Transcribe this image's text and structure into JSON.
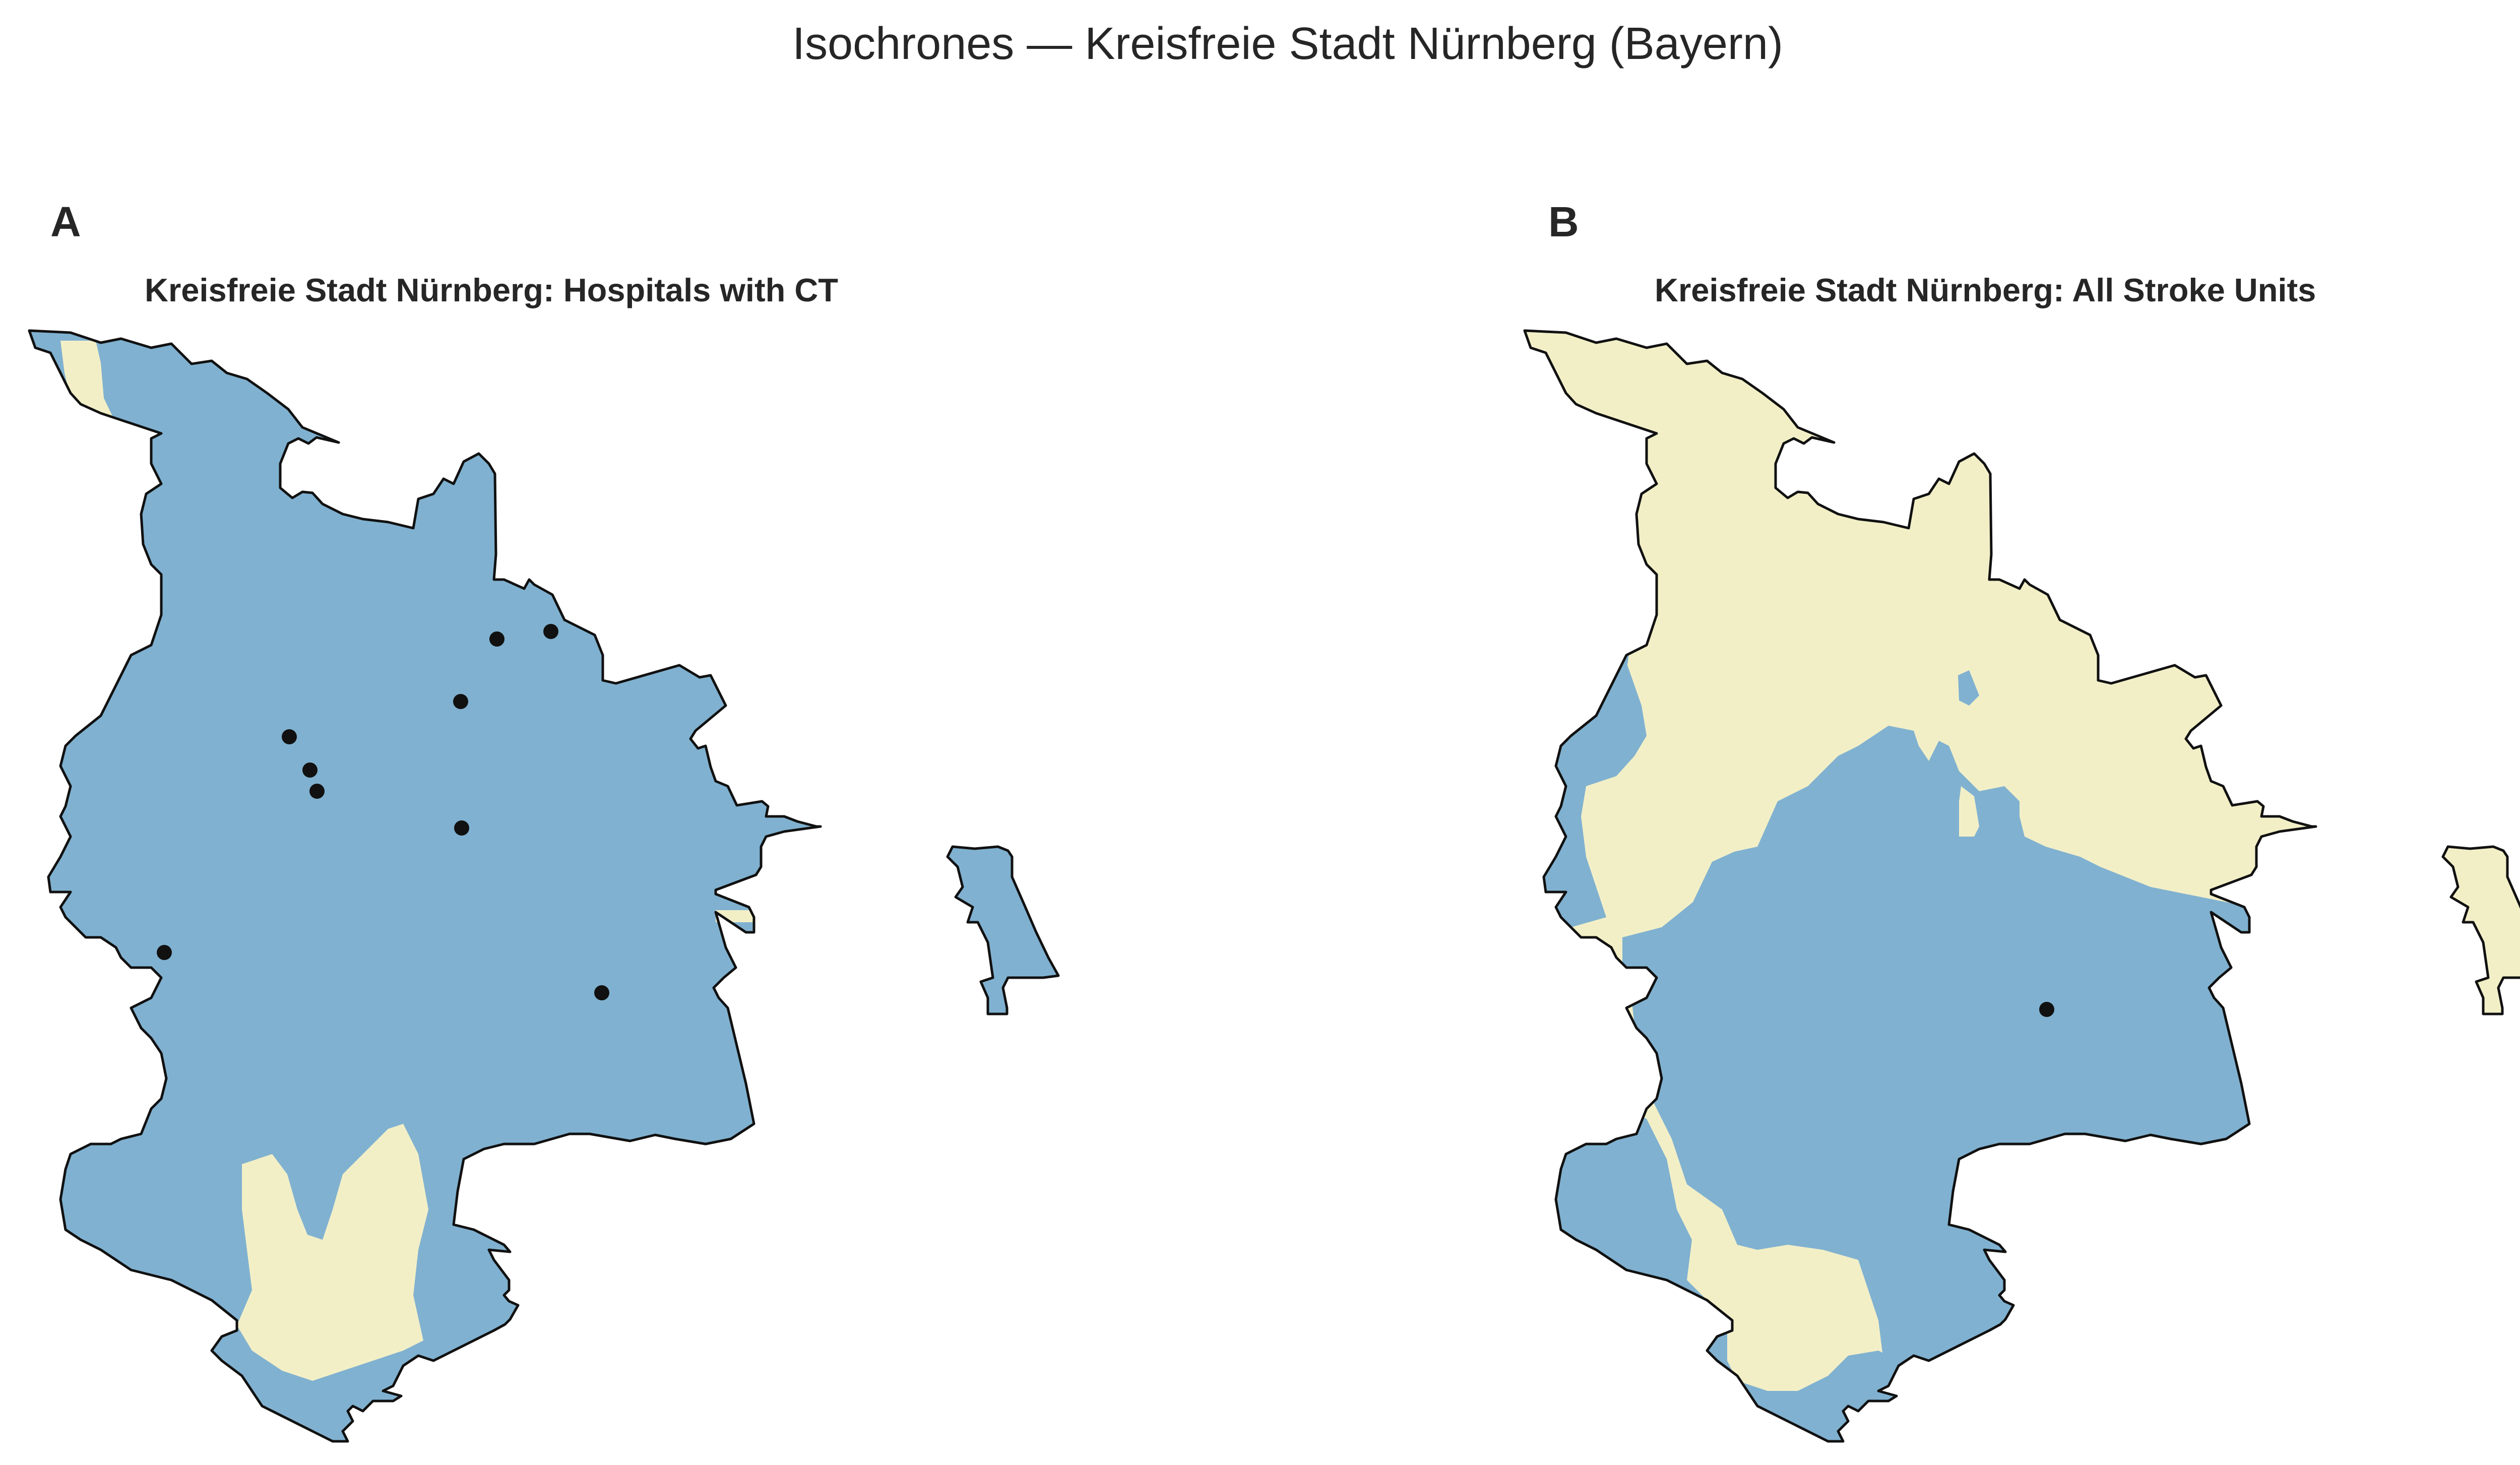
{
  "title": "Isochrones — Kreisfreie Stadt Nürnberg (Bayern)",
  "colors": {
    "reachable": "#80b1d0",
    "not_reachable": "#f2efc7",
    "boundary": "#111111",
    "facility": "#111111"
  },
  "panels": [
    {
      "letter": "A",
      "title": "Kreisfreie Stadt Nürnberg: Hospitals with CT",
      "facility_count": 9
    },
    {
      "letter": "B",
      "title": "Kreisfreie Stadt Nürnberg: All Stroke Units",
      "facility_count": 1
    }
  ]
}
